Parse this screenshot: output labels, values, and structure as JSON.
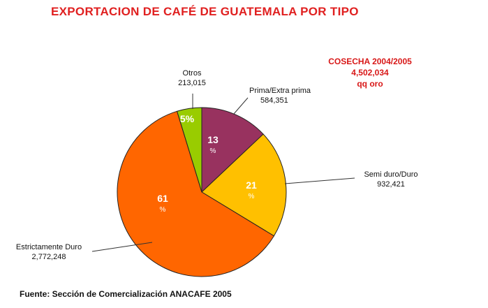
{
  "title": "EXPORTACION DE CAFÉ DE GUATEMALA  POR TIPO",
  "cosecha": {
    "line1": "COSECHA 2004/2005",
    "line2": "4,502,034",
    "line3": "qq oro"
  },
  "source": "Fuente: Sección de Comercialización  ANACAFE 2005",
  "chart_data": {
    "type": "pie",
    "title": "EXPORTACION DE CAFÉ DE GUATEMALA  POR TIPO",
    "slices": [
      {
        "name": "Prima/Extra prima",
        "value_label": "584,351",
        "value": 584351,
        "pct_num": "13",
        "pct_sym": "%",
        "color": "#98325f"
      },
      {
        "name": "Semi duro/Duro",
        "value_label": "932,421",
        "value": 932421,
        "pct_num": "21",
        "pct_sym": "%",
        "color": "#ffc000"
      },
      {
        "name": "Estrictamente Duro",
        "value_label": "2,772,248",
        "value": 2772248,
        "pct_num": "61",
        "pct_sym": "%",
        "color": "#ff6600"
      },
      {
        "name": "Otros",
        "value_label": "213,015",
        "value": 213015,
        "pct_num": "5%",
        "pct_sym": "",
        "color": "#99cc00"
      }
    ],
    "total": 4502034,
    "start_angle_deg": 0,
    "direction": "clockwise",
    "legend": "none"
  }
}
